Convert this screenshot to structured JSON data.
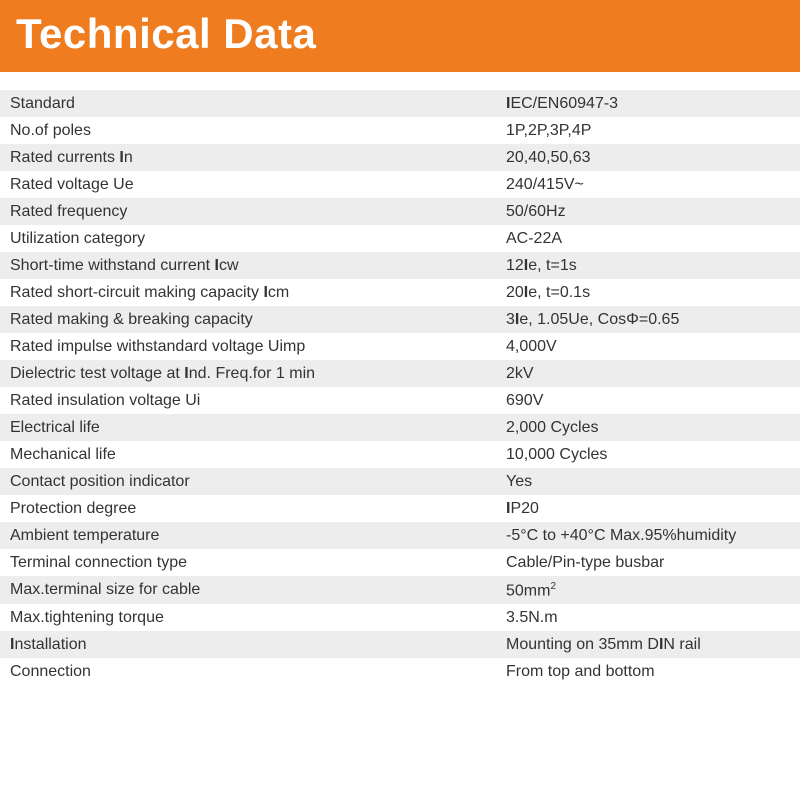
{
  "header": {
    "title": "Technical Data",
    "bg_color": "#f07c20",
    "text_color": "#ffffff",
    "fontsize": 42
  },
  "table": {
    "row_odd_bg": "#ededed",
    "row_even_bg": "#ffffff",
    "text_color": "#333333",
    "fontsize": 16,
    "label_width_pct": 62,
    "value_width_pct": 38,
    "rows": [
      {
        "label": "Standard",
        "value_html": "<span class='bold-sym'>I</span>EC/EN60947-3"
      },
      {
        "label": "No.of poles",
        "value_html": "1P,2P,3P,4P"
      },
      {
        "label_html": "Rated currents  <span class='bold-sym'>I</span>n",
        "value_html": "20,40,50,63"
      },
      {
        "label": "Rated voltage  Ue",
        "value_html": "240/415V~"
      },
      {
        "label": "Rated frequency",
        "value_html": "50/60Hz"
      },
      {
        "label": "Utilization category",
        "value_html": "AC-22A"
      },
      {
        "label_html": "Short-time withstand current  <span class='bold-sym'>I</span>cw",
        "value_html": "12<span class='bold-sym'>I</span>e, t=1s"
      },
      {
        "label_html": "Rated short-circuit making capacity  <span class='bold-sym'>I</span>cm",
        "value_html": "20<span class='bold-sym'>I</span>e, t=0.1s"
      },
      {
        "label": "Rated making & breaking capacity",
        "value_html": "3<span class='bold-sym'>I</span>e, 1.05Ue, CosΦ=0.65"
      },
      {
        "label": "Rated impulse withstandard voltage  Uimp",
        "value_html": "4,000V"
      },
      {
        "label_html": "Dielectric test voltage at <span class='bold-sym'>I</span>nd. Freq.for 1 min",
        "value_html": "2kV"
      },
      {
        "label": "Rated insulation voltage  Ui",
        "value_html": "690V"
      },
      {
        "label": "Electrical life",
        "value_html": "2,000 Cycles"
      },
      {
        "label": "Mechanical life",
        "value_html": "10,000 Cycles"
      },
      {
        "label": "Contact position indicator",
        "value_html": "Yes"
      },
      {
        "label": "Protection degree",
        "value_html": "<span class='bold-sym'>I</span>P20"
      },
      {
        "label": "Ambient temperature",
        "value_html": "-5°C to +40°C Max.95%humidity"
      },
      {
        "label": "Terminal connection type",
        "value_html": "Cable/Pin-type busbar"
      },
      {
        "label": "Max.terminal size for cable",
        "value_html": "50mm<sup>2</sup>"
      },
      {
        "label": "Max.tightening torque",
        "value_html": "3.5N.m"
      },
      {
        "label_html": "<span class='bold-sym'>I</span>nstallation",
        "value_html": "Mounting on 35mm D<span class='bold-sym'>I</span>N rail"
      },
      {
        "label": "Connection",
        "value_html": "From top and bottom"
      }
    ]
  }
}
